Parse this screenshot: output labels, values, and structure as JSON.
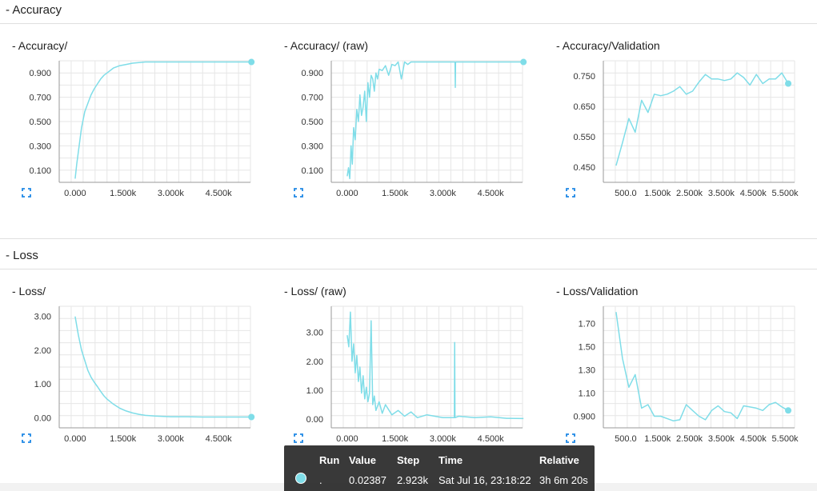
{
  "sections": [
    {
      "title": "- Accuracy"
    },
    {
      "title": "- Loss"
    }
  ],
  "series_color": "#7fdde8",
  "chart_data": [
    {
      "type": "line",
      "title": "- Accuracy/",
      "xticks": [
        "0.000",
        "1.500k",
        "3.000k",
        "4.500k"
      ],
      "xtick_values": [
        0,
        1500,
        3000,
        4500
      ],
      "yticks": [
        "0.100",
        "0.300",
        "0.500",
        "0.700",
        "0.900"
      ],
      "ytick_values": [
        0.1,
        0.3,
        0.5,
        0.7,
        0.9
      ],
      "xlim": [
        -500,
        5500
      ],
      "ylim": [
        0.0,
        1.0
      ],
      "x": [
        0,
        50,
        100,
        150,
        200,
        300,
        400,
        500,
        600,
        700,
        800,
        900,
        1000,
        1200,
        1400,
        1600,
        1800,
        2000,
        2200,
        2500,
        3000,
        3500,
        4000,
        4500,
        5000,
        5530
      ],
      "y": [
        0.03,
        0.15,
        0.25,
        0.35,
        0.45,
        0.58,
        0.65,
        0.72,
        0.77,
        0.81,
        0.85,
        0.88,
        0.9,
        0.94,
        0.96,
        0.97,
        0.98,
        0.985,
        0.99,
        0.99,
        0.99,
        0.99,
        0.99,
        0.99,
        0.99,
        0.99
      ],
      "end_marker": true
    },
    {
      "type": "line",
      "title": "- Accuracy/ (raw)",
      "xticks": [
        "0.000",
        "1.500k",
        "3.000k",
        "4.500k"
      ],
      "xtick_values": [
        0,
        1500,
        3000,
        4500
      ],
      "yticks": [
        "0.100",
        "0.300",
        "0.500",
        "0.700",
        "0.900"
      ],
      "ytick_values": [
        0.1,
        0.3,
        0.5,
        0.7,
        0.9
      ],
      "xlim": [
        -500,
        5500
      ],
      "ylim": [
        0.0,
        1.0
      ],
      "x": [
        0,
        40,
        80,
        120,
        160,
        200,
        250,
        300,
        350,
        400,
        450,
        500,
        550,
        600,
        650,
        700,
        750,
        800,
        850,
        900,
        950,
        1000,
        1100,
        1200,
        1300,
        1400,
        1500,
        1600,
        1700,
        1800,
        1900,
        2000,
        2100,
        2200,
        2300,
        2400,
        2500,
        3380,
        3390,
        3400,
        3500,
        4000,
        4500,
        5000,
        5530
      ],
      "y": [
        0.05,
        0.12,
        0.03,
        0.3,
        0.15,
        0.45,
        0.35,
        0.6,
        0.5,
        0.72,
        0.55,
        0.62,
        0.75,
        0.5,
        0.82,
        0.7,
        0.88,
        0.85,
        0.75,
        0.9,
        0.85,
        0.93,
        0.92,
        0.96,
        0.88,
        0.97,
        0.96,
        0.99,
        0.85,
        0.99,
        0.97,
        0.99,
        0.99,
        0.99,
        0.99,
        0.99,
        0.99,
        0.99,
        0.78,
        0.99,
        0.99,
        0.99,
        0.99,
        0.99,
        0.99
      ],
      "end_marker": true
    },
    {
      "type": "line",
      "title": "- Accuracy/Validation",
      "xticks": [
        "500.0",
        "1.500k",
        "2.500k",
        "3.500k",
        "4.500k",
        "5.500k"
      ],
      "xtick_values": [
        500,
        1500,
        2500,
        3500,
        4500,
        5500
      ],
      "yticks": [
        "0.450",
        "0.550",
        "0.650",
        "0.750"
      ],
      "ytick_values": [
        0.45,
        0.55,
        0.65,
        0.75
      ],
      "xlim": [
        -200,
        5800
      ],
      "ylim": [
        0.4,
        0.8
      ],
      "x": [
        200,
        400,
        600,
        800,
        1000,
        1200,
        1400,
        1600,
        1800,
        2000,
        2200,
        2400,
        2600,
        2800,
        3000,
        3200,
        3400,
        3600,
        3800,
        4000,
        4200,
        4400,
        4600,
        4800,
        5000,
        5200,
        5400,
        5600
      ],
      "y": [
        0.455,
        0.53,
        0.61,
        0.565,
        0.67,
        0.63,
        0.69,
        0.685,
        0.69,
        0.7,
        0.715,
        0.69,
        0.7,
        0.73,
        0.755,
        0.74,
        0.74,
        0.735,
        0.74,
        0.76,
        0.745,
        0.72,
        0.755,
        0.725,
        0.74,
        0.74,
        0.76,
        0.725
      ],
      "end_marker": true
    },
    {
      "type": "line",
      "title": "- Loss/",
      "xticks": [
        "0.000",
        "1.500k",
        "3.000k",
        "4.500k"
      ],
      "xtick_values": [
        0,
        1500,
        3000,
        4500
      ],
      "yticks": [
        "0.00",
        "1.00",
        "2.00",
        "3.00"
      ],
      "ytick_values": [
        0,
        1,
        2,
        3
      ],
      "xlim": [
        -500,
        5500
      ],
      "ylim": [
        -0.3,
        3.3
      ],
      "x": [
        0,
        100,
        200,
        300,
        400,
        500,
        600,
        700,
        800,
        900,
        1000,
        1200,
        1400,
        1600,
        1800,
        2000,
        2200,
        2500,
        3000,
        3500,
        4000,
        4500,
        5000,
        5530
      ],
      "y": [
        3.0,
        2.45,
        2.0,
        1.7,
        1.4,
        1.2,
        1.05,
        0.92,
        0.78,
        0.65,
        0.55,
        0.4,
        0.28,
        0.2,
        0.14,
        0.1,
        0.07,
        0.05,
        0.03,
        0.03,
        0.02,
        0.02,
        0.02,
        0.02
      ],
      "end_marker": true
    },
    {
      "type": "line",
      "title": "- Loss/ (raw)",
      "xticks": [
        "0.000",
        "1.500k",
        "3.000k",
        "4.500k"
      ],
      "xtick_values": [
        0,
        1500,
        3000,
        4500
      ],
      "yticks": [
        "0.00",
        "1.00",
        "2.00",
        "3.00"
      ],
      "ytick_values": [
        0,
        1,
        2,
        3
      ],
      "xlim": [
        -500,
        5500
      ],
      "ylim": [
        -0.3,
        3.9
      ],
      "x": [
        0,
        50,
        100,
        150,
        200,
        250,
        300,
        350,
        400,
        450,
        500,
        550,
        600,
        650,
        700,
        750,
        800,
        850,
        900,
        1000,
        1100,
        1200,
        1400,
        1600,
        1800,
        2000,
        2200,
        2500,
        3000,
        3360,
        3370,
        3380,
        3500,
        4000,
        4500,
        5000,
        5530
      ],
      "y": [
        2.9,
        2.5,
        3.7,
        2.0,
        2.6,
        1.6,
        2.2,
        1.3,
        1.8,
        0.9,
        1.5,
        0.7,
        1.1,
        0.6,
        0.9,
        3.4,
        0.5,
        0.8,
        0.3,
        0.6,
        0.2,
        0.5,
        0.15,
        0.3,
        0.1,
        0.25,
        0.05,
        0.15,
        0.05,
        0.05,
        2.65,
        0.05,
        0.1,
        0.05,
        0.08,
        0.03,
        0.02
      ],
      "end_marker": false
    },
    {
      "type": "line",
      "title": "- Loss/Validation",
      "xticks": [
        "500.0",
        "1.500k",
        "2.500k",
        "3.500k",
        "4.500k",
        "5.500k"
      ],
      "xtick_values": [
        500,
        1500,
        2500,
        3500,
        4500,
        5500
      ],
      "yticks": [
        "0.900",
        "1.10",
        "1.30",
        "1.50",
        "1.70"
      ],
      "ytick_values": [
        0.9,
        1.1,
        1.3,
        1.5,
        1.7
      ],
      "xlim": [
        -200,
        5800
      ],
      "ylim": [
        0.8,
        1.85
      ],
      "x": [
        200,
        400,
        600,
        800,
        1000,
        1200,
        1400,
        1600,
        1800,
        2000,
        2200,
        2400,
        2600,
        2800,
        3000,
        3200,
        3400,
        3600,
        3800,
        4000,
        4200,
        4400,
        4600,
        4800,
        5000,
        5200,
        5400,
        5600
      ],
      "y": [
        1.8,
        1.4,
        1.15,
        1.26,
        0.97,
        1.0,
        0.9,
        0.9,
        0.88,
        0.86,
        0.87,
        1.0,
        0.95,
        0.9,
        0.87,
        0.95,
        0.99,
        0.94,
        0.93,
        0.88,
        0.99,
        0.98,
        0.97,
        0.95,
        1.0,
        1.02,
        0.98,
        0.95
      ],
      "end_marker": true
    }
  ],
  "tooltip": {
    "headers": {
      "run": "Run",
      "value": "Value",
      "step": "Step",
      "time": "Time",
      "relative": "Relative"
    },
    "row": {
      "run": ".",
      "value": "0.02387",
      "step": "2.923k",
      "time": "Sat Jul 16, 23:18:22",
      "relative": "3h 6m 20s"
    }
  }
}
